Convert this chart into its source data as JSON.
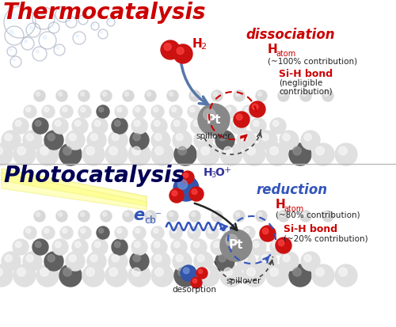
{
  "title_thermo": "Thermocatalysis",
  "title_photo": "Photocatalysis",
  "title_thermo_color": "#cc0000",
  "title_photo_color": "#000055",
  "title_fontsize": 20,
  "bg_color": "#ffffff",
  "ball_white_face": "#e0e0e0",
  "ball_white_hi": "#f8f8f8",
  "ball_gray_face": "#909090",
  "ball_gray_hi": "#c0c0c0",
  "ball_darkgray_face": "#606060",
  "ball_red_face": "#cc1111",
  "ball_red_hi": "#ff4444",
  "ball_blue_face": "#3355aa",
  "ball_blue_hi": "#7799dd",
  "pt_face": "#888888",
  "pt_hi": "#bbbbbb",
  "thermo": {
    "dissociation": "dissociation",
    "dissociation_color": "#cc0000",
    "Hatom_contrib": "(~100% contribution)",
    "SiH_label": "Si-H bond",
    "SiH_contrib_1": "(negligible",
    "SiH_contrib_2": "contribution)",
    "spillover": "spillover",
    "dashed_red": "#cc0000",
    "dashed_black": "#444444",
    "arrow_blue": "#5577aa"
  },
  "photo": {
    "reduction": "reduction",
    "reduction_color": "#3355bb",
    "Hatom_contrib": "(~80% contribution)",
    "SiH_label": "Si-H bond",
    "SiH_contrib": "(~20% contribution)",
    "ecb_color": "#3355bb",
    "desorption": "desorption",
    "spillover": "spillover",
    "dashed_blue": "#3355bb",
    "dashed_black": "#444444",
    "light_color": "#ffff99",
    "light_edge": "#eeee88"
  },
  "label_color": "#cc0000",
  "label_black": "#222222"
}
